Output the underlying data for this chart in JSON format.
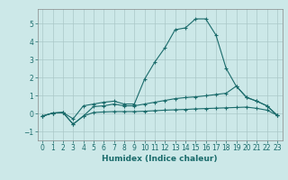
{
  "title": "",
  "xlabel": "Humidex (Indice chaleur)",
  "ylabel": "",
  "background_color": "#cce8e8",
  "grid_color": "#aac8c8",
  "line_color": "#1a6b6b",
  "xlim": [
    -0.5,
    23.5
  ],
  "ylim": [
    -1.5,
    5.8
  ],
  "xticks": [
    0,
    1,
    2,
    3,
    4,
    5,
    6,
    7,
    8,
    9,
    10,
    11,
    12,
    13,
    14,
    15,
    16,
    17,
    18,
    19,
    20,
    21,
    22,
    23
  ],
  "yticks": [
    -1,
    0,
    1,
    2,
    3,
    4,
    5
  ],
  "line1_x": [
    0,
    1,
    2,
    3,
    4,
    5,
    6,
    7,
    8,
    9,
    10,
    11,
    12,
    13,
    14,
    15,
    16,
    17,
    18,
    19,
    20,
    21,
    22,
    23
  ],
  "line1_y": [
    -0.15,
    0.02,
    0.05,
    -0.3,
    0.42,
    0.52,
    0.62,
    0.68,
    0.52,
    0.52,
    1.9,
    2.85,
    3.65,
    4.65,
    4.75,
    5.25,
    5.25,
    4.35,
    2.5,
    1.5,
    0.9,
    0.68,
    0.42,
    -0.1
  ],
  "line2_x": [
    0,
    1,
    2,
    3,
    4,
    5,
    6,
    7,
    8,
    9,
    10,
    11,
    12,
    13,
    14,
    15,
    16,
    17,
    18,
    19,
    20,
    21,
    22,
    23
  ],
  "line2_y": [
    -0.15,
    0.02,
    0.05,
    -0.6,
    -0.15,
    0.38,
    0.42,
    0.52,
    0.42,
    0.42,
    0.52,
    0.62,
    0.72,
    0.82,
    0.88,
    0.92,
    0.98,
    1.05,
    1.12,
    1.52,
    0.88,
    0.68,
    0.42,
    -0.1
  ],
  "line3_x": [
    0,
    1,
    2,
    3,
    4,
    5,
    6,
    7,
    8,
    9,
    10,
    11,
    12,
    13,
    14,
    15,
    16,
    17,
    18,
    19,
    20,
    21,
    22,
    23
  ],
  "line3_y": [
    -0.15,
    0.02,
    0.05,
    -0.6,
    -0.15,
    0.05,
    0.08,
    0.1,
    0.1,
    0.1,
    0.12,
    0.15,
    0.18,
    0.2,
    0.22,
    0.25,
    0.27,
    0.29,
    0.31,
    0.33,
    0.35,
    0.28,
    0.18,
    -0.1
  ],
  "tick_fontsize": 5.5,
  "xlabel_fontsize": 6.5
}
